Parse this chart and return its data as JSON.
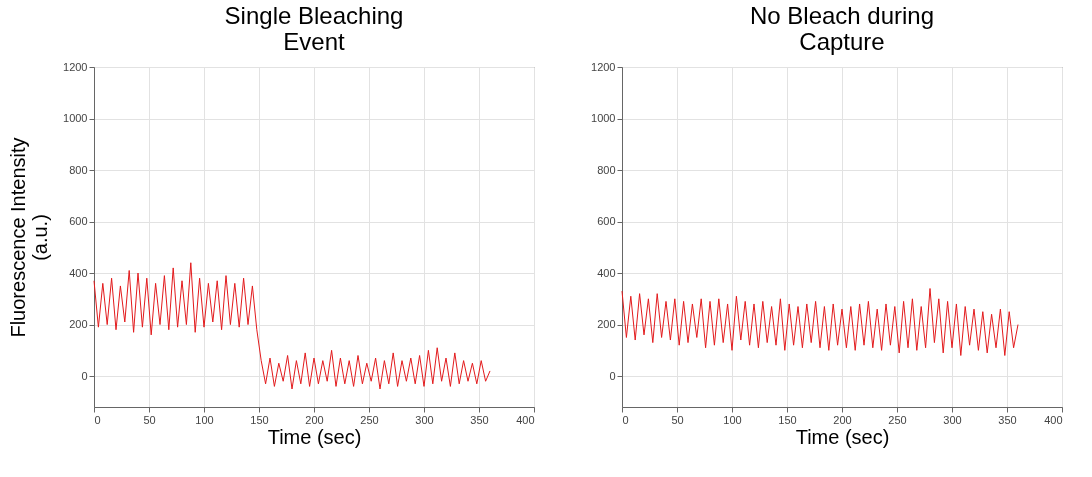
{
  "chart_data": [
    {
      "type": "line",
      "title": "Single Bleaching\nEvent",
      "xlabel": "Time (sec)",
      "ylabel": "Fluorescence Intensity\n(a.u.)",
      "x": [
        0,
        4,
        8,
        12,
        16,
        20,
        24,
        28,
        32,
        36,
        40,
        44,
        48,
        52,
        56,
        60,
        64,
        68,
        72,
        76,
        80,
        84,
        88,
        92,
        96,
        100,
        104,
        108,
        112,
        116,
        120,
        124,
        128,
        132,
        136,
        140,
        144,
        148,
        152,
        156,
        160,
        164,
        168,
        172,
        176,
        180,
        184,
        188,
        192,
        196,
        200,
        204,
        208,
        212,
        216,
        220,
        224,
        228,
        232,
        236,
        240,
        244,
        248,
        252,
        256,
        260,
        264,
        268,
        272,
        276,
        280,
        284,
        288,
        292,
        296,
        300,
        304,
        308,
        312,
        316,
        320,
        324,
        328,
        332,
        336,
        340,
        344,
        348,
        352,
        356,
        360
      ],
      "series": [
        {
          "color": "#e31a1c",
          "values": [
            370,
            190,
            360,
            200,
            380,
            180,
            350,
            210,
            410,
            170,
            400,
            190,
            380,
            160,
            360,
            200,
            390,
            180,
            420,
            190,
            370,
            200,
            440,
            170,
            380,
            190,
            360,
            210,
            370,
            180,
            390,
            200,
            360,
            190,
            380,
            200,
            350,
            180,
            60,
            -30,
            70,
            -40,
            50,
            -20,
            80,
            -50,
            60,
            -30,
            90,
            -40,
            70,
            -30,
            60,
            -20,
            100,
            -40,
            70,
            -30,
            60,
            -40,
            80,
            -30,
            50,
            -20,
            70,
            -50,
            60,
            -30,
            90,
            -40,
            60,
            -20,
            70,
            -30,
            80,
            -40,
            100,
            -30,
            110,
            -20,
            70,
            -40,
            90,
            -30,
            60,
            -20,
            50,
            -30,
            60,
            -20,
            20
          ]
        }
      ],
      "xlim": [
        0,
        400
      ],
      "xticks": [
        0,
        50,
        100,
        150,
        200,
        250,
        300,
        350,
        400
      ],
      "ylim": [
        -120,
        1200
      ],
      "yticks": [
        0,
        200,
        400,
        600,
        800,
        1000,
        1200
      ],
      "grid": true
    },
    {
      "type": "line",
      "title": "No Bleach during\nCapture",
      "xlabel": "Time (sec)",
      "x": [
        0,
        4,
        8,
        12,
        16,
        20,
        24,
        28,
        32,
        36,
        40,
        44,
        48,
        52,
        56,
        60,
        64,
        68,
        72,
        76,
        80,
        84,
        88,
        92,
        96,
        100,
        104,
        108,
        112,
        116,
        120,
        124,
        128,
        132,
        136,
        140,
        144,
        148,
        152,
        156,
        160,
        164,
        168,
        172,
        176,
        180,
        184,
        188,
        192,
        196,
        200,
        204,
        208,
        212,
        216,
        220,
        224,
        228,
        232,
        236,
        240,
        244,
        248,
        252,
        256,
        260,
        264,
        268,
        272,
        276,
        280,
        284,
        288,
        292,
        296,
        300,
        304,
        308,
        312,
        316,
        320,
        324,
        328,
        332,
        336,
        340,
        344,
        348,
        352,
        356,
        360
      ],
      "series": [
        {
          "color": "#e31a1c",
          "values": [
            330,
            150,
            310,
            140,
            320,
            160,
            300,
            130,
            320,
            150,
            290,
            140,
            300,
            120,
            290,
            130,
            280,
            150,
            300,
            110,
            290,
            120,
            300,
            130,
            280,
            100,
            310,
            140,
            290,
            120,
            280,
            110,
            290,
            130,
            270,
            120,
            300,
            100,
            280,
            120,
            270,
            110,
            280,
            130,
            290,
            110,
            270,
            100,
            280,
            120,
            260,
            110,
            270,
            100,
            280,
            120,
            290,
            110,
            260,
            100,
            280,
            120,
            270,
            90,
            290,
            110,
            300,
            100,
            270,
            110,
            340,
            130,
            300,
            90,
            290,
            110,
            280,
            80,
            270,
            120,
            260,
            100,
            250,
            90,
            240,
            110,
            260,
            80,
            250,
            110,
            200
          ]
        }
      ],
      "xlim": [
        0,
        400
      ],
      "xticks": [
        0,
        50,
        100,
        150,
        200,
        250,
        300,
        350,
        400
      ],
      "ylim": [
        -120,
        1200
      ],
      "yticks": [
        0,
        200,
        400,
        600,
        800,
        1000,
        1200
      ],
      "grid": true
    }
  ]
}
